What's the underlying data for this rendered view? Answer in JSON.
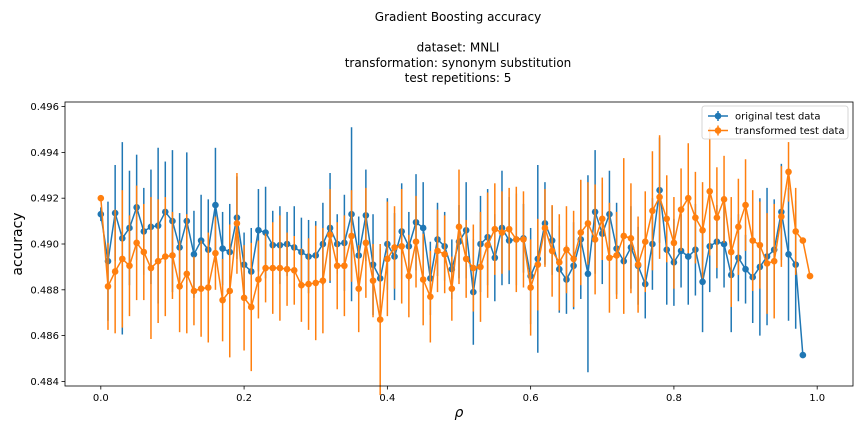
{
  "chart_data": {
    "type": "line",
    "title_lines": [
      "Gradient Boosting accuracy",
      "",
      "dataset: MNLI",
      "transformation: synonym substitution",
      "test repetitions: 5"
    ],
    "xlabel": "ρ",
    "ylabel": "accuracy",
    "xlim": [
      -0.05,
      1.05
    ],
    "ylim": [
      0.4838,
      0.4962
    ],
    "xticks": [
      0.0,
      0.2,
      0.4,
      0.6,
      0.8,
      1.0
    ],
    "xtick_labels": [
      "0.0",
      "0.2",
      "0.4",
      "0.6",
      "0.8",
      "1.0"
    ],
    "yticks": [
      0.484,
      0.486,
      0.488,
      0.49,
      0.492,
      0.494,
      0.496
    ],
    "ytick_labels": [
      "0.484",
      "0.486",
      "0.488",
      "0.490",
      "0.492",
      "0.494",
      "0.496"
    ],
    "grid": false,
    "legend_position": "top-right",
    "x_start": 0.0,
    "x_step": 0.01,
    "series": [
      {
        "name": "original test data",
        "color": "#1f77b4",
        "values": [
          0.4913,
          0.48925,
          0.49135,
          0.49025,
          0.4907,
          0.4916,
          0.49055,
          0.49075,
          0.4908,
          0.4914,
          0.491,
          0.48985,
          0.491,
          0.48955,
          0.49015,
          0.48975,
          0.4917,
          0.4898,
          0.48965,
          0.49115,
          0.4891,
          0.4888,
          0.4906,
          0.4905,
          0.48995,
          0.48995,
          0.49,
          0.48985,
          0.48965,
          0.48945,
          0.4895,
          0.49,
          0.4907,
          0.49,
          0.49005,
          0.4913,
          0.4895,
          0.49125,
          0.4891,
          0.4885,
          0.49,
          0.48945,
          0.49055,
          0.4899,
          0.49095,
          0.4907,
          0.4885,
          0.4902,
          0.4899,
          0.4889,
          0.4901,
          0.4906,
          0.4879,
          0.49,
          0.4903,
          0.4894,
          0.4907,
          0.49015,
          0.4902,
          0.49025,
          0.4886,
          0.48935,
          0.4909,
          0.49015,
          0.4889,
          0.48845,
          0.48905,
          0.4902,
          0.4887,
          0.4914,
          0.49045,
          0.4913,
          0.4898,
          0.48925,
          0.48985,
          0.48905,
          0.48825,
          0.49,
          0.49235,
          0.48975,
          0.4892,
          0.4897,
          0.48945,
          0.48975,
          0.48835,
          0.4899,
          0.4901,
          0.49,
          0.48865,
          0.4894,
          0.4889,
          0.48855,
          0.489,
          0.48945,
          0.48975,
          0.4914,
          0.48955,
          0.4891,
          0.48515
        ],
        "errors": [
          0.0003,
          0.0026,
          0.0021,
          0.0042,
          0.0025,
          0.0023,
          0.0019,
          0.0025,
          0.0034,
          0.0022,
          0.0031,
          0.0015,
          0.003,
          0.0019,
          0.002,
          0.0022,
          0.0025,
          0.0016,
          0.0021,
          0.0018,
          0.0014,
          0.0019,
          0.0018,
          0.002,
          0.0015,
          0.0017,
          0.0014,
          0.0018,
          0.0015,
          0.0016,
          0.0015,
          0.0018,
          0.0024,
          0.0013,
          0.0021,
          0.0038,
          0.0017,
          0.002,
          0.0022,
          0.0013,
          0.002,
          0.0019,
          0.0021,
          0.0015,
          0.0021,
          0.002,
          0.0016,
          0.0016,
          0.0015,
          0.0013,
          0.0016,
          0.0021,
          0.0023,
          0.0021,
          0.0021,
          0.0019,
          0.0025,
          0.0019,
          0.002,
          0.0015,
          0.0021,
          0.0041,
          0.0018,
          0.0015,
          0.0019,
          0.0015,
          0.0019,
          0.0026,
          0.0043,
          0.0027,
          0.0022,
          0.0019,
          0.002,
          0.0021,
          0.0018,
          0.0017,
          0.0015,
          0.002,
          0.0023,
          0.0024,
          0.0019,
          0.0016,
          0.0021,
          0.002,
          0.0022,
          0.002,
          0.0016,
          0.0019,
          0.0025,
          0.0019,
          0.0015,
          0.002,
          0.003,
          0.003,
          0.0022,
          0.0021,
          0.0029,
          0.0028,
          0.0
        ]
      },
      {
        "name": "transformed test data",
        "color": "#ff7f0e",
        "values": [
          0.492,
          0.48815,
          0.4888,
          0.48935,
          0.48905,
          0.49005,
          0.48965,
          0.48895,
          0.48925,
          0.48945,
          0.4895,
          0.48815,
          0.4887,
          0.48795,
          0.48805,
          0.4881,
          0.4896,
          0.48755,
          0.48795,
          0.4909,
          0.48765,
          0.48725,
          0.48845,
          0.48895,
          0.48895,
          0.48895,
          0.4889,
          0.48885,
          0.4882,
          0.48825,
          0.4883,
          0.4884,
          0.4904,
          0.48905,
          0.48905,
          0.49035,
          0.48805,
          0.49005,
          0.4884,
          0.4867,
          0.48935,
          0.48985,
          0.4899,
          0.4886,
          0.4901,
          0.48845,
          0.4877,
          0.4897,
          0.48955,
          0.48805,
          0.49075,
          0.48935,
          0.48895,
          0.489,
          0.48995,
          0.49065,
          0.4905,
          0.49065,
          0.4902,
          0.4902,
          0.4881,
          0.4891,
          0.4907,
          0.4897,
          0.4892,
          0.48975,
          0.48935,
          0.4905,
          0.4909,
          0.4902,
          0.4911,
          0.4894,
          0.4895,
          0.49035,
          0.49025,
          0.4891,
          0.4901,
          0.49145,
          0.49205,
          0.4911,
          0.49005,
          0.4915,
          0.492,
          0.49115,
          0.4906,
          0.4923,
          0.49115,
          0.49195,
          0.48965,
          0.49075,
          0.4917,
          0.49015,
          0.48995,
          0.48915,
          0.48925,
          0.4912,
          0.49315,
          0.49055,
          0.49015,
          0.4886
        ],
        "errors": [
          0.0,
          0.0019,
          0.0027,
          0.003,
          0.0022,
          0.0025,
          0.0021,
          0.0031,
          0.0027,
          0.0026,
          0.0019,
          0.002,
          0.0026,
          0.0015,
          0.0021,
          0.0024,
          0.0016,
          0.0018,
          0.0029,
          0.0022,
          0.0023,
          0.0028,
          0.0017,
          0.0015,
          0.002,
          0.0023,
          0.0016,
          0.0015,
          0.0016,
          0.002,
          0.0025,
          0.0023,
          0.002,
          0.0019,
          0.0022,
          0.002,
          0.0019,
          0.0024,
          0.0016,
          0.0033,
          0.0025,
          0.0018,
          0.0025,
          0.0018,
          0.002,
          0.002,
          0.002,
          0.0018,
          0.0017,
          0.0014,
          0.0025,
          0.0017,
          0.0019,
          0.0024,
          0.0023,
          0.002,
          0.0018,
          0.0018,
          0.0023,
          0.0021,
          0.0021,
          0.002,
          0.0017,
          0.002,
          0.0021,
          0.0019,
          0.0021,
          0.0023,
          0.0018,
          0.0024,
          0.0018,
          0.0024,
          0.0019,
          0.0034,
          0.0024,
          0.0021,
          0.0022,
          0.0026,
          0.0027,
          0.0019,
          0.002,
          0.0018,
          0.0024,
          0.002,
          0.0021,
          0.0028,
          0.0022,
          0.0019,
          0.0024,
          0.0021,
          0.002,
          0.0022,
          0.0019,
          0.0022,
          0.0025,
          0.0022,
          0.0013,
          0.0019,
          0.0,
          0.0
        ]
      }
    ]
  }
}
